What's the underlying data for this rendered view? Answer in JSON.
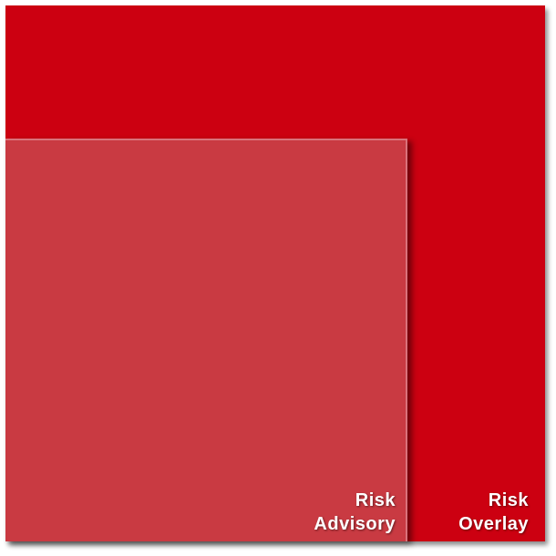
{
  "colors": {
    "outer": "#cc0011",
    "inner": "#c93a42",
    "text": "#ffffff"
  },
  "regions": {
    "overlay": {
      "line1": "Risk",
      "line2": "Overlay"
    },
    "advisory": {
      "line1": "Risk",
      "line2": "Advisory"
    }
  }
}
